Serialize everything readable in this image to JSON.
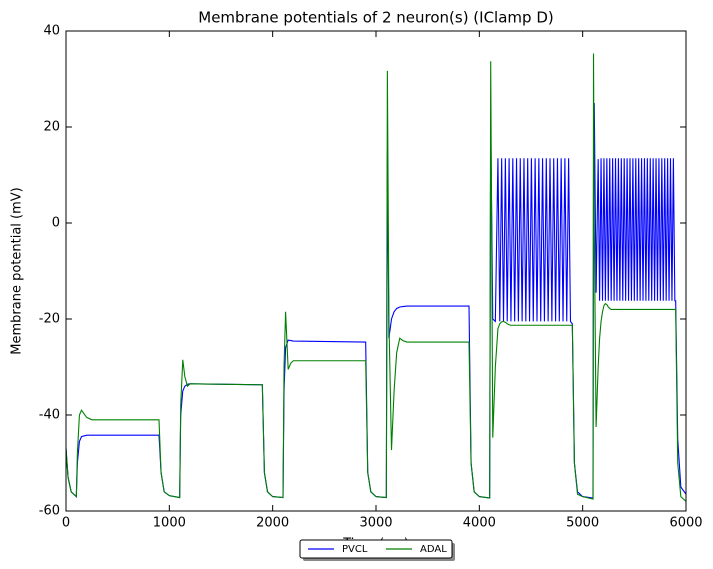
{
  "chart_data": {
    "type": "line",
    "title": "Membrane potentials of 2 neuron(s) (IClamp D)",
    "x_label": "Time (ms)",
    "y_label": "Membrane potential (mV)",
    "xlim": [
      0,
      6000
    ],
    "xticks": [
      0,
      1000,
      2000,
      3000,
      4000,
      5000,
      6000
    ],
    "ylim": [
      -60,
      40
    ],
    "yticks": [
      -60,
      -40,
      -20,
      0,
      20,
      40
    ],
    "legend": "lower center",
    "x": [
      0,
      20,
      50,
      100,
      110,
      130,
      150,
      200,
      250,
      900,
      920,
      950,
      1000,
      1100,
      1110,
      1130,
      1150,
      1175,
      1200,
      1900,
      1920,
      1950,
      2000,
      2100,
      2110,
      2125,
      2150,
      2175,
      2200,
      2900,
      2920,
      2950,
      3000,
      3100,
      3110,
      3125,
      3150,
      3175,
      3200,
      3230,
      3260,
      3300,
      3900,
      3920,
      3950,
      4000,
      4100,
      4110,
      4130,
      4155,
      4180,
      4198,
      4216,
      4234,
      4252,
      4270,
      4288,
      4306,
      4324,
      4342,
      4360,
      4378,
      4396,
      4414,
      4432,
      4450,
      4468,
      4486,
      4504,
      4522,
      4540,
      4558,
      4576,
      4594,
      4612,
      4630,
      4648,
      4666,
      4684,
      4702,
      4720,
      4738,
      4756,
      4774,
      4792,
      4810,
      4828,
      4846,
      4864,
      4882,
      4900,
      4920,
      4950,
      5000,
      5100,
      5105,
      5112,
      5130,
      5150,
      5164,
      5178,
      5192,
      5206,
      5220,
      5234,
      5248,
      5262,
      5276,
      5290,
      5304,
      5318,
      5332,
      5346,
      5360,
      5374,
      5388,
      5402,
      5416,
      5430,
      5444,
      5458,
      5472,
      5486,
      5500,
      5514,
      5528,
      5542,
      5556,
      5570,
      5584,
      5598,
      5612,
      5626,
      5640,
      5654,
      5668,
      5682,
      5696,
      5710,
      5724,
      5738,
      5752,
      5766,
      5780,
      5794,
      5808,
      5822,
      5836,
      5850,
      5864,
      5878,
      5892,
      5900,
      5920,
      5950,
      6000
    ],
    "series": [
      {
        "name": "PVCL",
        "color": "#0000ff",
        "values": [
          -47,
          -53,
          -56,
          -57,
          -50,
          -45.5,
          -44.5,
          -44.2,
          -44.2,
          -44.2,
          -52,
          -56,
          -56.8,
          -57.2,
          -40,
          -35,
          -34,
          -33.6,
          -33.5,
          -33.7,
          -52,
          -56,
          -57,
          -57.2,
          -35,
          -26,
          -24.4,
          -24.5,
          -24.6,
          -24.8,
          -52,
          -56,
          -57,
          -57.2,
          14.5,
          -24,
          -20,
          -18.5,
          -17.8,
          -17.5,
          -17.4,
          -17.3,
          -17.3,
          -50,
          -56,
          -57,
          -57.3,
          21,
          -20,
          -20.5,
          13.5,
          -20.5,
          13.5,
          -20.5,
          13.5,
          -20.5,
          13.5,
          -20.5,
          13.5,
          -20.5,
          13.5,
          -20.5,
          13.5,
          -20.5,
          13.5,
          -20.5,
          13.5,
          -20.5,
          13.5,
          -20.5,
          13.5,
          -20.5,
          13.5,
          -20.5,
          13.5,
          -20.5,
          13.5,
          -20.5,
          13.5,
          -20.5,
          13.5,
          -20.5,
          13.5,
          -20.5,
          13.5,
          -20.5,
          13.5,
          -20.5,
          13.5,
          -20.5,
          -21,
          -50,
          -56,
          -57,
          -57.3,
          10,
          25,
          -14.5,
          13.3,
          -16.2,
          13.5,
          -16.2,
          13.5,
          -16.2,
          13.5,
          -16.2,
          13.5,
          -16.2,
          13.5,
          -16.2,
          13.5,
          -16.2,
          13.5,
          -16.2,
          13.5,
          -16.2,
          13.5,
          -16.2,
          13.5,
          -16.2,
          13.5,
          -16.2,
          13.5,
          -16.2,
          13.5,
          -16.2,
          13.5,
          -16.2,
          13.5,
          -16.2,
          13.5,
          -16.2,
          13.5,
          -16.2,
          13.5,
          -16.2,
          13.5,
          -16.2,
          13.5,
          -16.2,
          13.5,
          -16.2,
          13.5,
          -16.2,
          13.5,
          -16.2,
          13.5,
          -16.2,
          13.5,
          -16.2,
          13.5,
          -16.2,
          -16.2,
          -45,
          -55,
          -56.5
        ]
      },
      {
        "name": "ADAL",
        "color": "#008000",
        "values": [
          -47,
          -53,
          -56,
          -57,
          -48,
          -40,
          -39,
          -40.5,
          -41,
          -41,
          -52,
          -56,
          -56.8,
          -57.2,
          -38,
          -28.5,
          -32,
          -34,
          -33.5,
          -33.7,
          -52,
          -56,
          -57,
          -57.2,
          -30,
          -18.5,
          -30.5,
          -29.2,
          -28.7,
          -28.7,
          -52,
          -56,
          -57,
          -57.2,
          31.7,
          -20,
          -47.3,
          -35,
          -27,
          -24,
          -24.5,
          -24.8,
          -24.8,
          -50,
          -56,
          -57,
          -57.3,
          33.7,
          -44.7,
          -30,
          -22,
          -21,
          -20.6,
          -20.5,
          -20.7,
          -21,
          -21.2,
          -21.3,
          -21.3,
          -21.3,
          -21.3,
          -21.3,
          -21.3,
          -21.3,
          -21.3,
          -21.3,
          -21.3,
          -21.3,
          -21.3,
          -21.3,
          -21.3,
          -21.3,
          -21.3,
          -21.3,
          -21.3,
          -21.3,
          -21.3,
          -21.3,
          -21.3,
          -21.3,
          -21.3,
          -21.3,
          -21.3,
          -21.3,
          -21.3,
          -21.3,
          -21.3,
          -21.3,
          -21.3,
          -21.3,
          -21.3,
          -50,
          -56.5,
          -57,
          -57.5,
          35.3,
          0,
          -42.5,
          -30,
          -24,
          -20.5,
          -18.5,
          -17.2,
          -16.8,
          -17,
          -17.5,
          -17.8,
          -18,
          -18,
          -18,
          -18,
          -18,
          -18,
          -18,
          -18,
          -18,
          -18,
          -18,
          -18,
          -18,
          -18,
          -18,
          -18,
          -18,
          -18,
          -18,
          -18,
          -18,
          -18,
          -18,
          -18,
          -18,
          -18,
          -18,
          -18,
          -18,
          -18,
          -18,
          -18,
          -18,
          -18,
          -18,
          -18,
          -18,
          -18,
          -18,
          -18,
          -18,
          -18,
          -18,
          -18,
          -18,
          -18,
          -50,
          -57,
          -58
        ]
      }
    ]
  }
}
